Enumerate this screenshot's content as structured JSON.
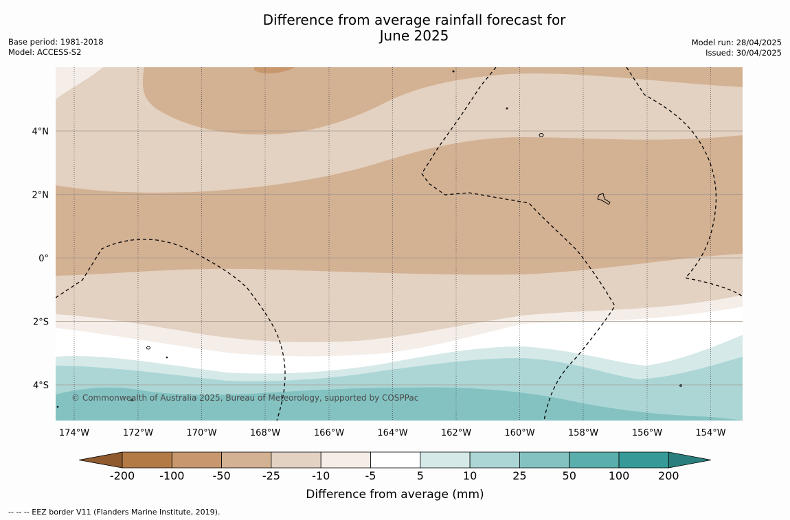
{
  "title": {
    "line1": "Difference from average rainfall forecast for",
    "line2": "June 2025"
  },
  "meta": {
    "base_period": "Base period: 1981-2018",
    "model": "Model: ACCESS-S2",
    "model_run": "Model run: 28/04/2025",
    "issued": "Issued: 30/04/2025"
  },
  "map": {
    "lat_labels": [
      "4°N",
      "2°N",
      "0°",
      "2°S",
      "4°S"
    ],
    "lon_labels": [
      "174°W",
      "172°W",
      "170°W",
      "168°W",
      "166°W",
      "164°W",
      "162°W",
      "160°W",
      "158°W",
      "156°W",
      "154°W"
    ],
    "copyright": "© Commonwealth of Australia 2025, Bureau of Meteorology, supported by COSPPac"
  },
  "colorbar": {
    "title": "Difference from average (mm)",
    "tick_labels": [
      "-200",
      "-100",
      "-50",
      "-25",
      "-10",
      "-5",
      "5",
      "10",
      "25",
      "50",
      "100",
      "200"
    ],
    "colors": [
      "#8f5a2e",
      "#b37a46",
      "#c8976e",
      "#d3b193",
      "#e3d1c1",
      "#f4ede8",
      "#ffffff",
      "#d5e9e8",
      "#acd6d6",
      "#83c2c1",
      "#5aaeac",
      "#369b98",
      "#2a7f7c"
    ]
  },
  "footer": "--  --  -- EEZ border V11 (Flanders Marine Institute, 2019)."
}
